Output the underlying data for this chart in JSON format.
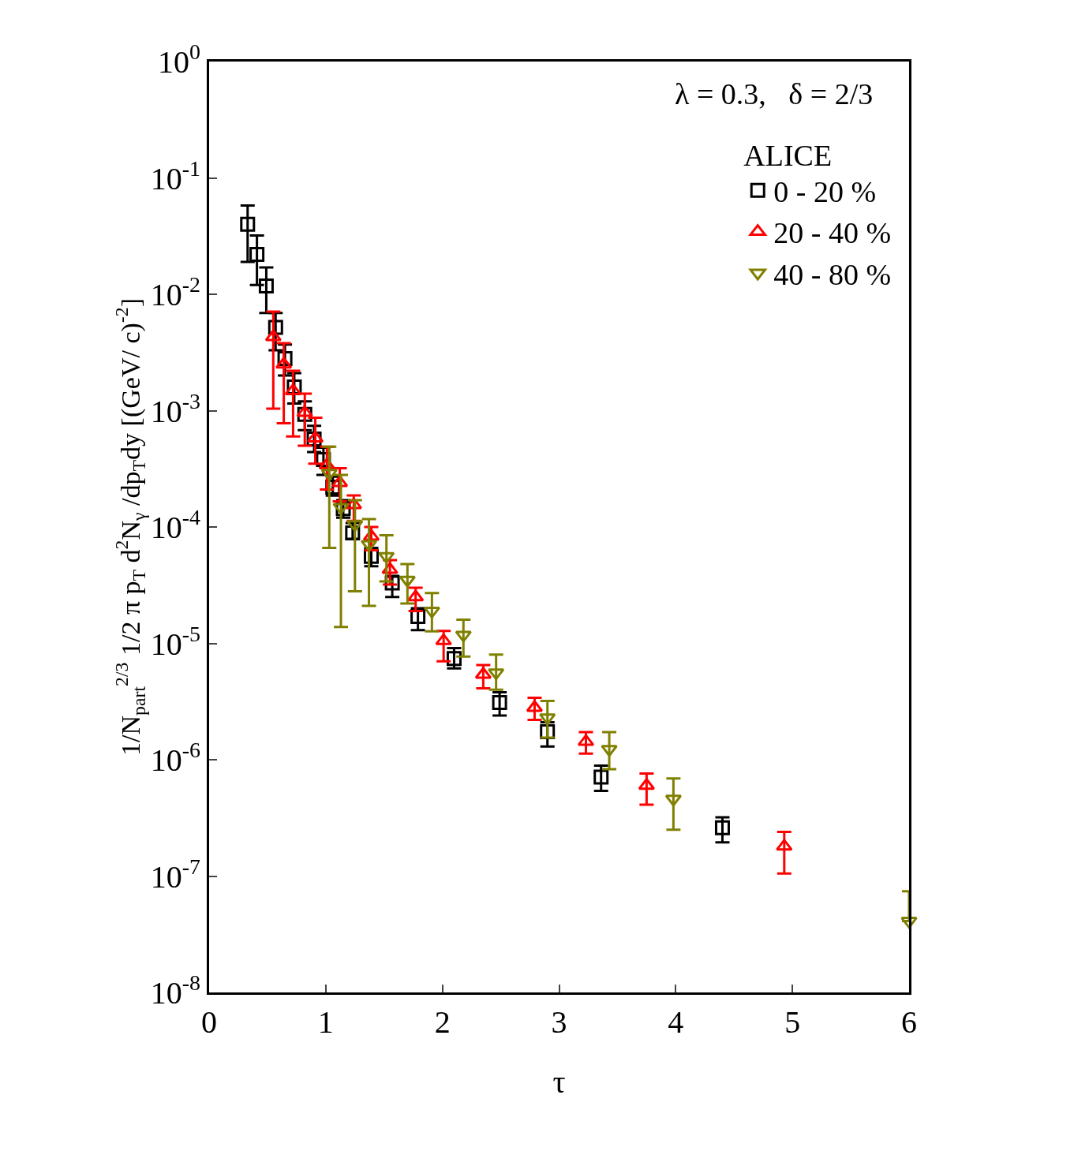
{
  "chart_data": {
    "type": "scatter",
    "xlabel": "τ",
    "ylabel": "1/N$_{part}$$^{2/3}$ 1/2 π p$_{T}$ d$^{2}$N$_{γ}$ /dp$_{T}$dy [(GeV/ c)$^{-2}$]",
    "legend_title": "ALICE",
    "annotations": [
      "λ = 0.3,   δ = 2/3"
    ],
    "log": "y",
    "grid": false,
    "legend": "top right",
    "xlim": [
      0,
      6
    ],
    "xticks": [
      0,
      1,
      2,
      3,
      4,
      5,
      6
    ],
    "ylim": [
      1e-08,
      1
    ],
    "yticks": [
      {
        "value": 1e-08,
        "label": "10$^{-8}$"
      },
      {
        "value": 1e-07,
        "label": "10$^{-7}$"
      },
      {
        "value": 1e-06,
        "label": "10$^{-6}$"
      },
      {
        "value": 1e-05,
        "label": "10$^{-5}$"
      },
      {
        "value": 0.0001,
        "label": "10$^{-4}$"
      },
      {
        "value": 0.001,
        "label": "10$^{-3}$"
      },
      {
        "value": 0.01,
        "label": "10$^{-2}$"
      },
      {
        "value": 0.1,
        "label": "10$^{-1}$"
      },
      {
        "value": 1,
        "label": "10$^{0}$"
      }
    ],
    "series": [
      {
        "name": "0 - 20 %",
        "color": "#000000",
        "marker": "square",
        "x": [
          0.33,
          0.41,
          0.49,
          0.57,
          0.65,
          0.73,
          0.82,
          0.9,
          0.98,
          1.06,
          1.15,
          1.23,
          1.39,
          1.57,
          1.79,
          2.1,
          2.49,
          2.9,
          3.36,
          4.4
        ],
        "values": [
          0.04,
          0.022,
          0.0118,
          0.0052,
          0.0028,
          0.0016,
          0.00093,
          0.00057,
          0.00038,
          0.00022,
          0.000144,
          8.9e-05,
          5.6e-05,
          3.3e-05,
          1.7e-05,
          7.4e-06,
          3.1e-06,
          1.74e-06,
          7.1e-07,
          2.6e-07
        ],
        "errors": [
          [
            0.019,
            0.058
          ],
          [
            0.012,
            0.032
          ],
          [
            0.0069,
            0.017
          ],
          [
            0.0033,
            0.0069
          ],
          [
            0.002,
            0.0037
          ],
          [
            0.00115,
            0.0021
          ],
          [
            0.00068,
            0.0012
          ],
          [
            0.00044,
            0.00074
          ],
          [
            0.00028,
            0.00048
          ],
          [
            0.000186,
            0.00027
          ],
          [
            0.00012,
            0.00017
          ],
          [
            7.9e-05,
            0.000108
          ],
          [
            4.6e-05,
            6.6e-05
          ],
          [
            2.5e-05,
            3.8e-05
          ],
          [
            1.3e-05,
            2e-05
          ],
          [
            6.1e-06,
            9.1e-06
          ],
          [
            2.4e-06,
            3.8e-06
          ],
          [
            1.3e-06,
            2.1e-06
          ],
          [
            5.4e-07,
            8.9e-07
          ],
          [
            1.95e-07,
            3.2e-07
          ]
        ]
      },
      {
        "name": "20 - 40 %",
        "color": "#ff0000",
        "marker": "triangle",
        "x": [
          0.55,
          0.64,
          0.72,
          0.82,
          0.91,
          1.01,
          1.12,
          1.24,
          1.39,
          1.55,
          1.77,
          2.01,
          2.35,
          2.79,
          3.23,
          3.75,
          4.93
        ],
        "values": [
          0.0043,
          0.0025,
          0.00148,
          0.00096,
          0.00058,
          0.00034,
          0.00024,
          0.000155,
          8.3e-05,
          4.3e-05,
          2.5e-05,
          1.05e-05,
          5.4e-06,
          2.8e-06,
          1.43e-06,
          6e-07,
          1.8e-07
        ],
        "errors": [
          [
            0.00104,
            0.0071
          ],
          [
            0.00078,
            0.0038
          ],
          [
            0.0006,
            0.0022
          ],
          [
            0.0005,
            0.0014
          ],
          [
            0.00035,
            0.00087
          ],
          [
            0.00021,
            0.00049
          ],
          [
            0.000166,
            0.00032
          ],
          [
            0.000113,
            0.000187
          ],
          [
            6.3e-05,
            0.0001
          ],
          [
            3.2e-05,
            5.2e-05
          ],
          [
            1.9e-05,
            3e-05
          ],
          [
            7e-06,
            1.28e-05
          ],
          [
            4.1e-06,
            6.5e-06
          ],
          [
            2.2e-06,
            3.4e-06
          ],
          [
            1.13e-06,
            1.73e-06
          ],
          [
            4.1e-07,
            7.6e-07
          ],
          [
            1.05e-07,
            2.4e-07
          ]
        ]
      },
      {
        "name": "40 - 80 %",
        "color": "#808000",
        "marker": "triangle-down",
        "x": [
          1.03,
          1.13,
          1.25,
          1.37,
          1.52,
          1.7,
          1.91,
          2.18,
          2.46,
          2.9,
          3.43,
          3.98,
          6.0
        ],
        "values": [
          0.00029,
          0.000148,
          0.000105,
          7.1e-05,
          5.6e-05,
          3.5e-05,
          1.9e-05,
          1.18e-05,
          5.6e-06,
          2.3e-06,
          1.23e-06,
          4.6e-07,
          4.1e-08
        ],
        "errors": [
          [
            6.6e-05,
            0.00049
          ],
          [
            1.38e-05,
            0.00028
          ],
          [
            2.8e-05,
            0.00017
          ],
          [
            2.1e-05,
            0.000117
          ],
          [
            3.4e-05,
            8.5e-05
          ],
          [
            2.2e-05,
            4.8e-05
          ],
          [
            1.27e-05,
            2.7e-05
          ],
          [
            7.7e-06,
            1.6e-05
          ],
          [
            4e-06,
            8e-06
          ],
          [
            1.55e-06,
            3.2e-06
          ],
          [
            8.3e-07,
            1.73e-06
          ],
          [
            2.5e-07,
            6.9e-07
          ],
          [
            4.1e-08,
            7.4e-08
          ]
        ]
      }
    ]
  }
}
